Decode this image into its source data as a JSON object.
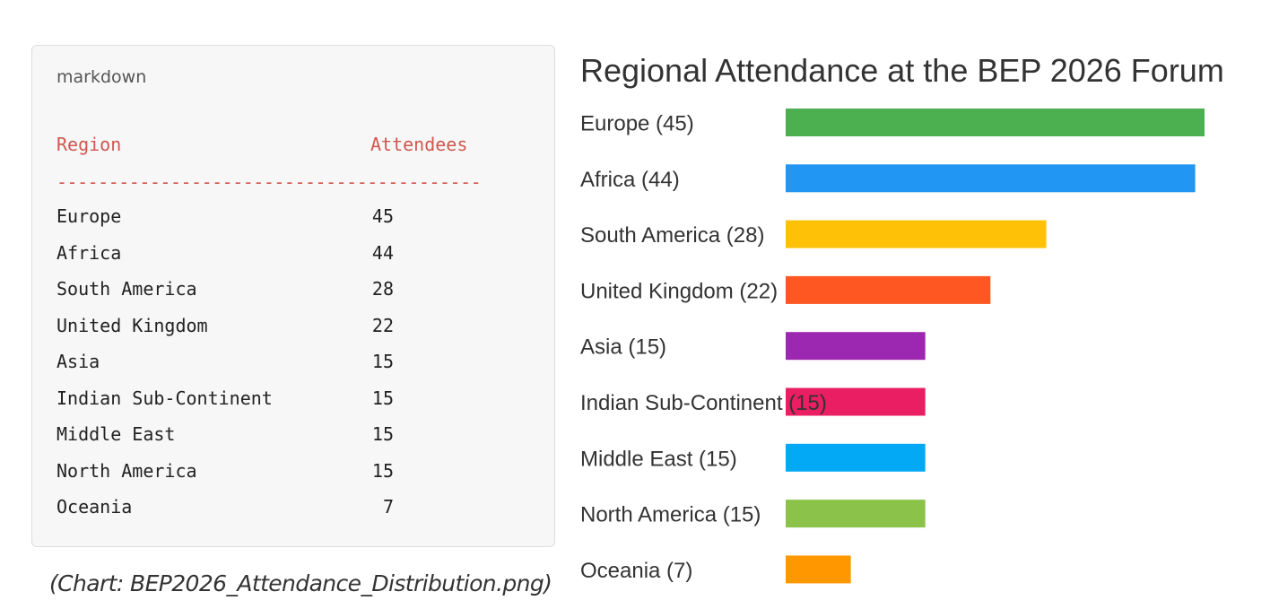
{
  "code_block": {
    "language_label": "markdown",
    "header": {
      "region": "Region",
      "attendees": "Attendees"
    },
    "separator": "-----------------------------------------",
    "rows": [
      {
        "region": "Europe",
        "attendees": "45"
      },
      {
        "region": "Africa",
        "attendees": "44"
      },
      {
        "region": "South America",
        "attendees": "28"
      },
      {
        "region": "United Kingdom",
        "attendees": "22"
      },
      {
        "region": "Asia",
        "attendees": "15"
      },
      {
        "region": "Indian Sub-Continent",
        "attendees": "15"
      },
      {
        "region": "Middle East",
        "attendees": "15"
      },
      {
        "region": "North America",
        "attendees": "15"
      },
      {
        "region": "Oceania",
        "attendees": "7"
      }
    ]
  },
  "caption": "(Chart: BEP2026_Attendance_Distribution.png)",
  "chart_data": {
    "type": "bar",
    "orientation": "horizontal",
    "title": "Regional Attendance at the BEP 2026 Forum",
    "categories": [
      "Europe (45)",
      "Africa (44)",
      "South America (28)",
      "United Kingdom (22)",
      "Asia (15)",
      "Indian Sub-Continent (15)",
      "Middle East (15)",
      "North America (15)",
      "Oceania (7)"
    ],
    "values": [
      45,
      44,
      28,
      22,
      15,
      15,
      15,
      15,
      7
    ],
    "colors": [
      "#4caf50",
      "#2196f3",
      "#ffc107",
      "#ff5722",
      "#9c27b0",
      "#e91e63",
      "#03a9f4",
      "#8bc34a",
      "#ff9800"
    ],
    "xlim": [
      0,
      45
    ],
    "grid": false,
    "legend": "none"
  }
}
